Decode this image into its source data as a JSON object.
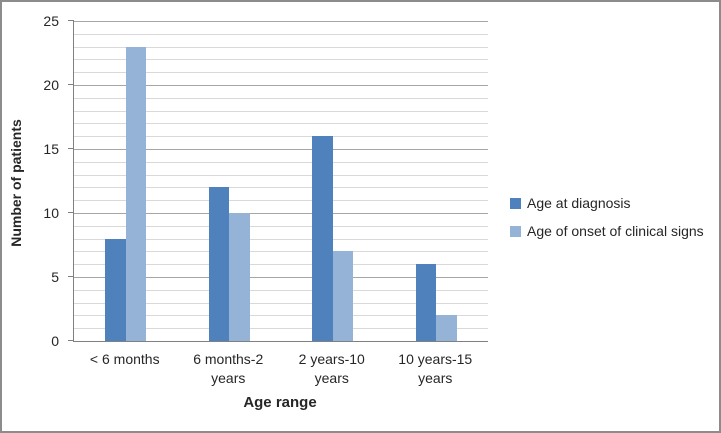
{
  "chart_data": {
    "type": "bar",
    "categories": [
      "< 6 months",
      "6 months-2 years",
      "2 years-10 years",
      "10 years-15 years"
    ],
    "series": [
      {
        "name": "Age at diagnosis",
        "color": "#4F81BD",
        "values": [
          8,
          12,
          16,
          6
        ]
      },
      {
        "name": "Age of onset of clinical signs",
        "color": "#95B3D7",
        "values": [
          23,
          10,
          7,
          2
        ]
      }
    ],
    "title": "",
    "xlabel": "Age range",
    "ylabel": "Number of patients",
    "ylim": [
      0,
      25
    ],
    "ytick_step": 5,
    "minor_grid_step": 1,
    "grid": true,
    "legend_position": "right"
  },
  "colors": {
    "background": "#FFFFFF",
    "figure_border": "#8C8C8C",
    "axis_line": "#808080",
    "major_gridline": "#A6A6A6",
    "minor_gridline": "#D9D9D9",
    "text": "#262626"
  }
}
